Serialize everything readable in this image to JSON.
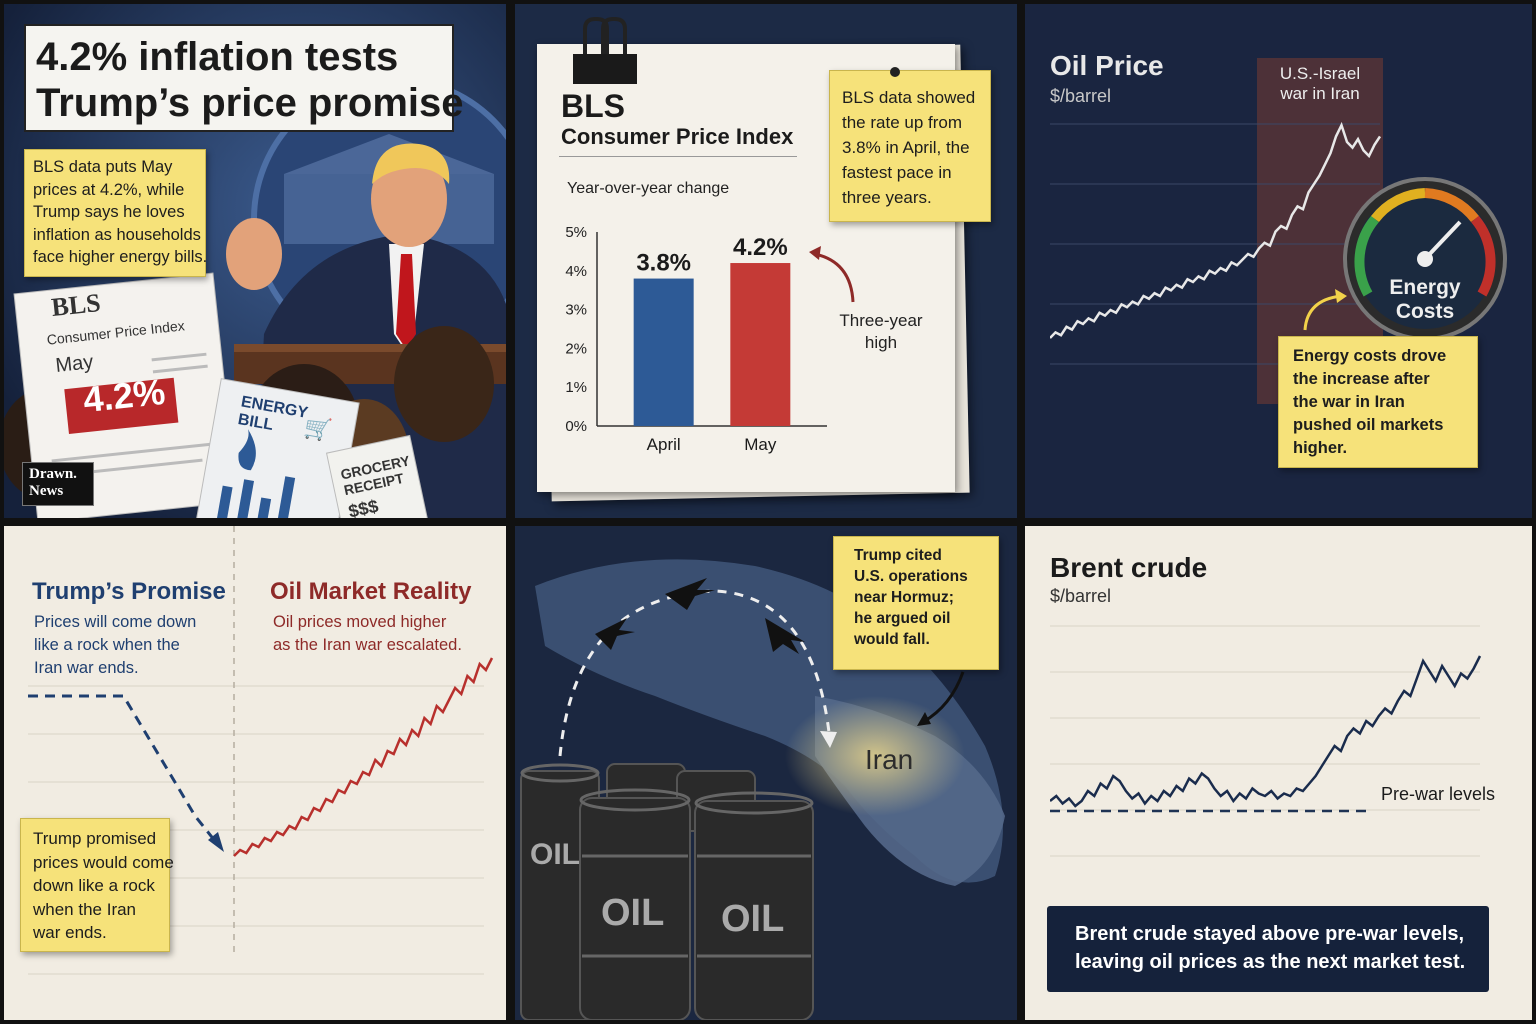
{
  "panel1": {
    "headline_line1": "4.2% inflation tests",
    "headline_line2": "Trump’s price promise",
    "note_lines": [
      "BLS data puts May",
      "prices at 4.2%, while",
      "Trump says he loves",
      "inflation as households",
      "face higher energy bills."
    ],
    "sheet_title": "BLS",
    "sheet_subtitle": "Consumer Price Index",
    "sheet_month": "May",
    "sheet_value": "4.2%",
    "energy_bill_line1": "ENERGY",
    "energy_bill_line2": "BILL",
    "grocery_line1": "GROCERY",
    "grocery_line2": "RECEIPT",
    "grocery_amount": "$$$",
    "logo_line1": "Drawn.",
    "logo_line2": "News"
  },
  "panel2": {
    "title": "BLS",
    "subtitle": "Consumer Price Index",
    "axis_caption": "Year-over-year change",
    "note_lines": [
      "BLS data showed",
      "the rate up from",
      "3.8% in April, the",
      "fastest pace in",
      "three years."
    ],
    "annotation_line1": "Three-year",
    "annotation_line2": "high",
    "chart_data": {
      "type": "bar",
      "categories": [
        "April",
        "May"
      ],
      "values": [
        3.8,
        4.2
      ],
      "value_labels": [
        "3.8%",
        "4.2%"
      ],
      "yticks": [
        "0%",
        "1%",
        "2%",
        "3%",
        "4%",
        "5%"
      ],
      "ylim": [
        0,
        5
      ],
      "colors": [
        "#2d5a96",
        "#c43a36"
      ]
    }
  },
  "panel3": {
    "title": "Oil Price",
    "unit": "$/barrel",
    "band_line1": "U.S.-Israel",
    "band_line2": "war in Iran",
    "gauge_line1": "Energy",
    "gauge_line2": "Costs",
    "note_lines": [
      "Energy costs drove",
      "the increase after",
      "the war in Iran",
      "pushed oil markets",
      "higher."
    ],
    "chart_data": {
      "type": "line",
      "ylim": [
        0,
        100
      ],
      "values": [
        20,
        22,
        21,
        24,
        23,
        26,
        25,
        27,
        26,
        29,
        28,
        30,
        29,
        32,
        31,
        33,
        32,
        35,
        34,
        36,
        35,
        38,
        37,
        39,
        38,
        41,
        40,
        42,
        41,
        44,
        43,
        45,
        44,
        47,
        46,
        48,
        50,
        49,
        52,
        54,
        53,
        58,
        60,
        59,
        64,
        67,
        66,
        72,
        75,
        78,
        82,
        86,
        92,
        96,
        90,
        88,
        91,
        87,
        85,
        89,
        92
      ]
    }
  },
  "panel4": {
    "left_title": "Trump’s Promise",
    "left_lines": [
      "Prices will come down",
      "like a rock when the",
      "Iran war ends."
    ],
    "right_title": "Oil Market Reality",
    "right_lines": [
      "Oil prices moved higher",
      "as the Iran war escalated."
    ],
    "note_lines": [
      "Trump promised",
      "prices would come",
      "down like a rock",
      "when the Iran",
      "war ends."
    ],
    "chart_data": {
      "type": "line",
      "promise_values": [
        80,
        80,
        80,
        80,
        80,
        60,
        40,
        20,
        5
      ],
      "reality_values": [
        10,
        12,
        11,
        14,
        13,
        16,
        15,
        18,
        17,
        20,
        19,
        23,
        22,
        26,
        25,
        29,
        28,
        32,
        31,
        35,
        34,
        38,
        37,
        42,
        40,
        45,
        44,
        49,
        47,
        52,
        50,
        56,
        54,
        60,
        58,
        62,
        66,
        64,
        70,
        68,
        74,
        72,
        76
      ]
    }
  },
  "panel5": {
    "note_lines": [
      "Trump cited",
      "U.S. operations",
      "near Hormuz;",
      "he argued oil",
      "would fall."
    ],
    "map_label": "Iran",
    "barrel_labels": [
      "OIL",
      "OIL",
      "OIL"
    ]
  },
  "panel6": {
    "title": "Brent crude",
    "unit": "$/barrel",
    "reference_label": "Pre-war levels",
    "banner_line1": "Brent crude stayed above pre-war levels,",
    "banner_line2": "leaving oil prices as the next market test.",
    "chart_data": {
      "type": "line",
      "ylim": [
        0,
        100
      ],
      "reference_value": 22,
      "values": [
        26,
        28,
        25,
        27,
        24,
        26,
        30,
        28,
        33,
        31,
        36,
        34,
        30,
        27,
        29,
        25,
        28,
        26,
        30,
        28,
        32,
        30,
        35,
        33,
        37,
        35,
        31,
        28,
        30,
        26,
        29,
        27,
        31,
        29,
        28,
        30,
        27,
        29,
        28,
        31,
        30,
        33,
        36,
        40,
        44,
        48,
        46,
        52,
        55,
        53,
        58,
        56,
        60,
        63,
        61,
        66,
        70,
        68,
        75,
        82,
        78,
        74,
        80,
        76,
        72,
        77,
        75,
        79,
        84
      ]
    }
  }
}
